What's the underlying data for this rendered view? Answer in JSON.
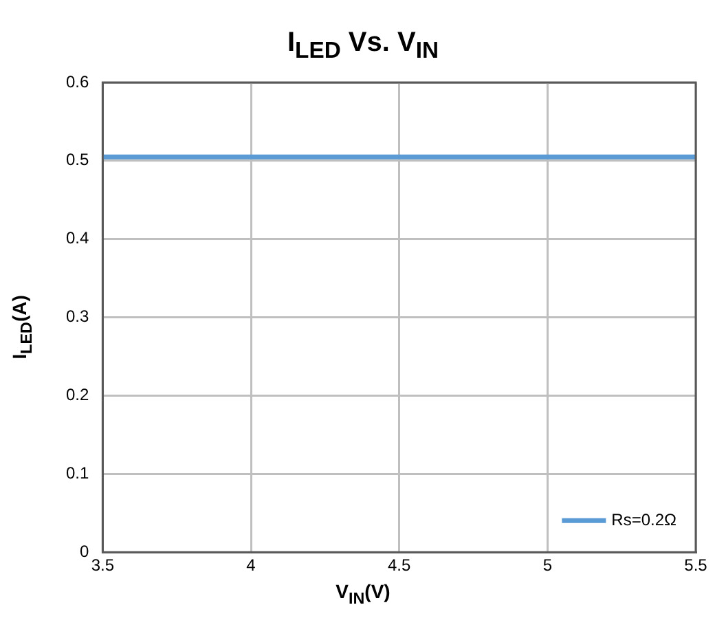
{
  "chart_data": {
    "type": "line",
    "title": "I$_{LED}$ Vs. V$_{IN}$",
    "xlabel": "V$_{IN}$(V)",
    "ylabel": "I$_{LED}$(A)",
    "x": [
      3.5,
      5.5
    ],
    "series": [
      {
        "name": "Rs=0.2Ω",
        "color": "#5b9bd5",
        "values": [
          0.505,
          0.505
        ]
      }
    ],
    "xlim": [
      3.5,
      5.5
    ],
    "xticks": [
      3.5,
      4,
      4.5,
      5,
      5.5
    ],
    "ylim": [
      0,
      0.6
    ],
    "yticks": [
      0,
      0.1,
      0.2,
      0.3,
      0.4,
      0.5,
      0.6
    ],
    "grid": true,
    "legend": "bottom right",
    "marker": "none",
    "line_style": "solid"
  }
}
